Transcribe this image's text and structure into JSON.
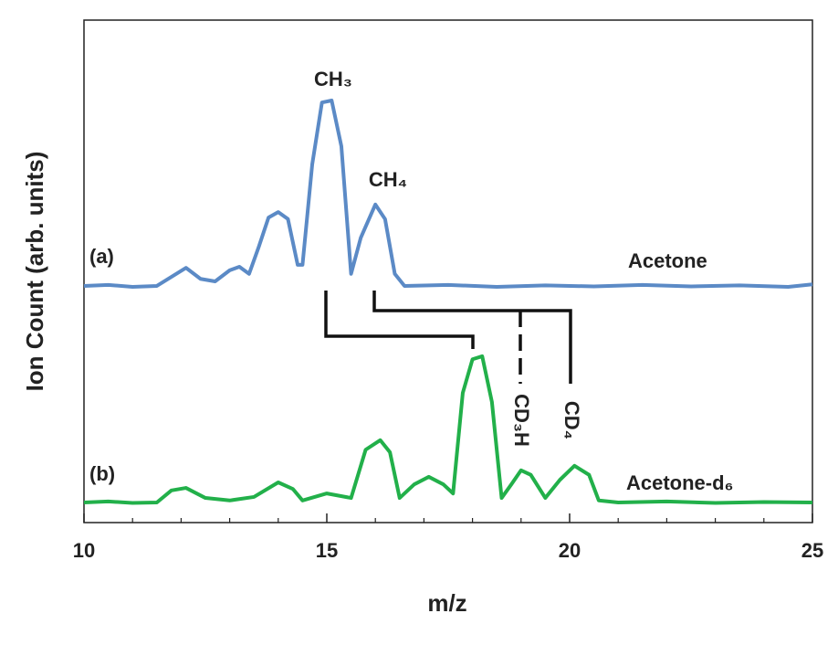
{
  "chart_data": {
    "type": "line",
    "xlabel": "m/z",
    "ylabel": "Ion Count (arb. units)",
    "xlim": [
      10,
      25
    ],
    "xticks": [
      10,
      15,
      20,
      25
    ],
    "xminorticks": [
      11,
      12,
      13,
      14,
      16,
      17,
      18,
      19,
      21,
      22,
      23,
      24
    ],
    "ylim": [
      0,
      100
    ],
    "series": [
      {
        "name": "Acetone",
        "label": "(a)",
        "color": "#5b8ac6",
        "x": [
          10,
          10.5,
          11,
          11.5,
          11.8,
          12.1,
          12.4,
          12.7,
          13.0,
          13.2,
          13.4,
          13.6,
          13.8,
          14.0,
          14.2,
          14.4,
          14.5,
          14.7,
          14.9,
          15.1,
          15.3,
          15.5,
          15.7,
          16.0,
          16.2,
          16.4,
          16.6,
          17.5,
          18.5,
          19.5,
          20.5,
          21.5,
          22.5,
          23.5,
          24.5,
          25
        ],
        "values": [
          47.1,
          47.3,
          46.9,
          47.1,
          48.9,
          50.7,
          48.5,
          48.0,
          50.2,
          50.9,
          49.5,
          54.9,
          60.7,
          61.8,
          60.4,
          51.3,
          51.3,
          71.3,
          83.6,
          84.0,
          74.9,
          49.5,
          56.7,
          63.3,
          60.4,
          49.5,
          47.1,
          47.3,
          46.9,
          47.2,
          47.0,
          47.3,
          47.0,
          47.2,
          46.9,
          47.4
        ]
      },
      {
        "name": "Acetone-d₆",
        "label": "(b)",
        "color": "#22b04a",
        "x": [
          10,
          10.5,
          11,
          11.5,
          11.8,
          12.1,
          12.5,
          13.0,
          13.5,
          14.0,
          14.3,
          14.5,
          15.0,
          15.5,
          15.8,
          16.1,
          16.3,
          16.5,
          16.8,
          17.1,
          17.4,
          17.6,
          17.8,
          18.0,
          18.2,
          18.4,
          18.6,
          18.8,
          19.0,
          19.2,
          19.5,
          19.8,
          20.1,
          20.4,
          20.6,
          21.0,
          22,
          23,
          24,
          25
        ],
        "values": [
          4.0,
          4.2,
          3.9,
          4.0,
          6.4,
          6.9,
          4.9,
          4.4,
          5.1,
          8.0,
          6.7,
          4.4,
          5.8,
          4.9,
          14.5,
          16.4,
          14.0,
          4.9,
          7.6,
          9.1,
          7.6,
          5.8,
          25.8,
          32.5,
          33.1,
          24.0,
          4.9,
          7.6,
          10.4,
          9.5,
          4.9,
          8.5,
          11.3,
          9.5,
          4.4,
          4.0,
          4.2,
          3.9,
          4.1,
          4.0
        ]
      }
    ],
    "annotations": [
      "CH₃",
      "CH₄",
      "CD₃H",
      "CD₄"
    ]
  }
}
